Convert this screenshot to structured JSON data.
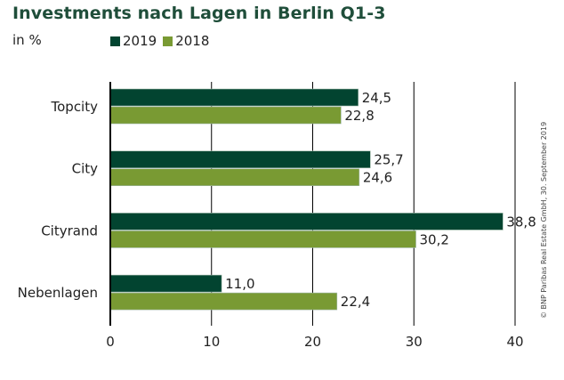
{
  "chart_data": {
    "type": "bar",
    "orientation": "horizontal",
    "title": "Investments nach Lagen in Berlin Q1-3",
    "ylabel": "in %",
    "xlabel": "",
    "categories": [
      "Topcity",
      "City",
      "Cityrand",
      "Nebenlagen"
    ],
    "series": [
      {
        "name": "2019",
        "color": "#024430",
        "values": [
          24.5,
          25.7,
          38.8,
          11.0
        ],
        "labels": [
          "24,5",
          "25,7",
          "38,8",
          "11,0"
        ]
      },
      {
        "name": "2018",
        "color": "#799a33",
        "values": [
          22.8,
          24.6,
          30.2,
          22.4
        ],
        "labels": [
          "22,8",
          "24,6",
          "30,2",
          "22,4"
        ]
      }
    ],
    "xlim": [
      0,
      40
    ],
    "xticks": [
      0,
      10,
      20,
      30,
      40
    ],
    "xtick_labels": [
      "0",
      "10",
      "20",
      "30",
      "40"
    ],
    "grid": true,
    "legend_position": "top-left"
  },
  "credit": "© BNP Paribas Real Estate GmbH, 30. September 2019"
}
